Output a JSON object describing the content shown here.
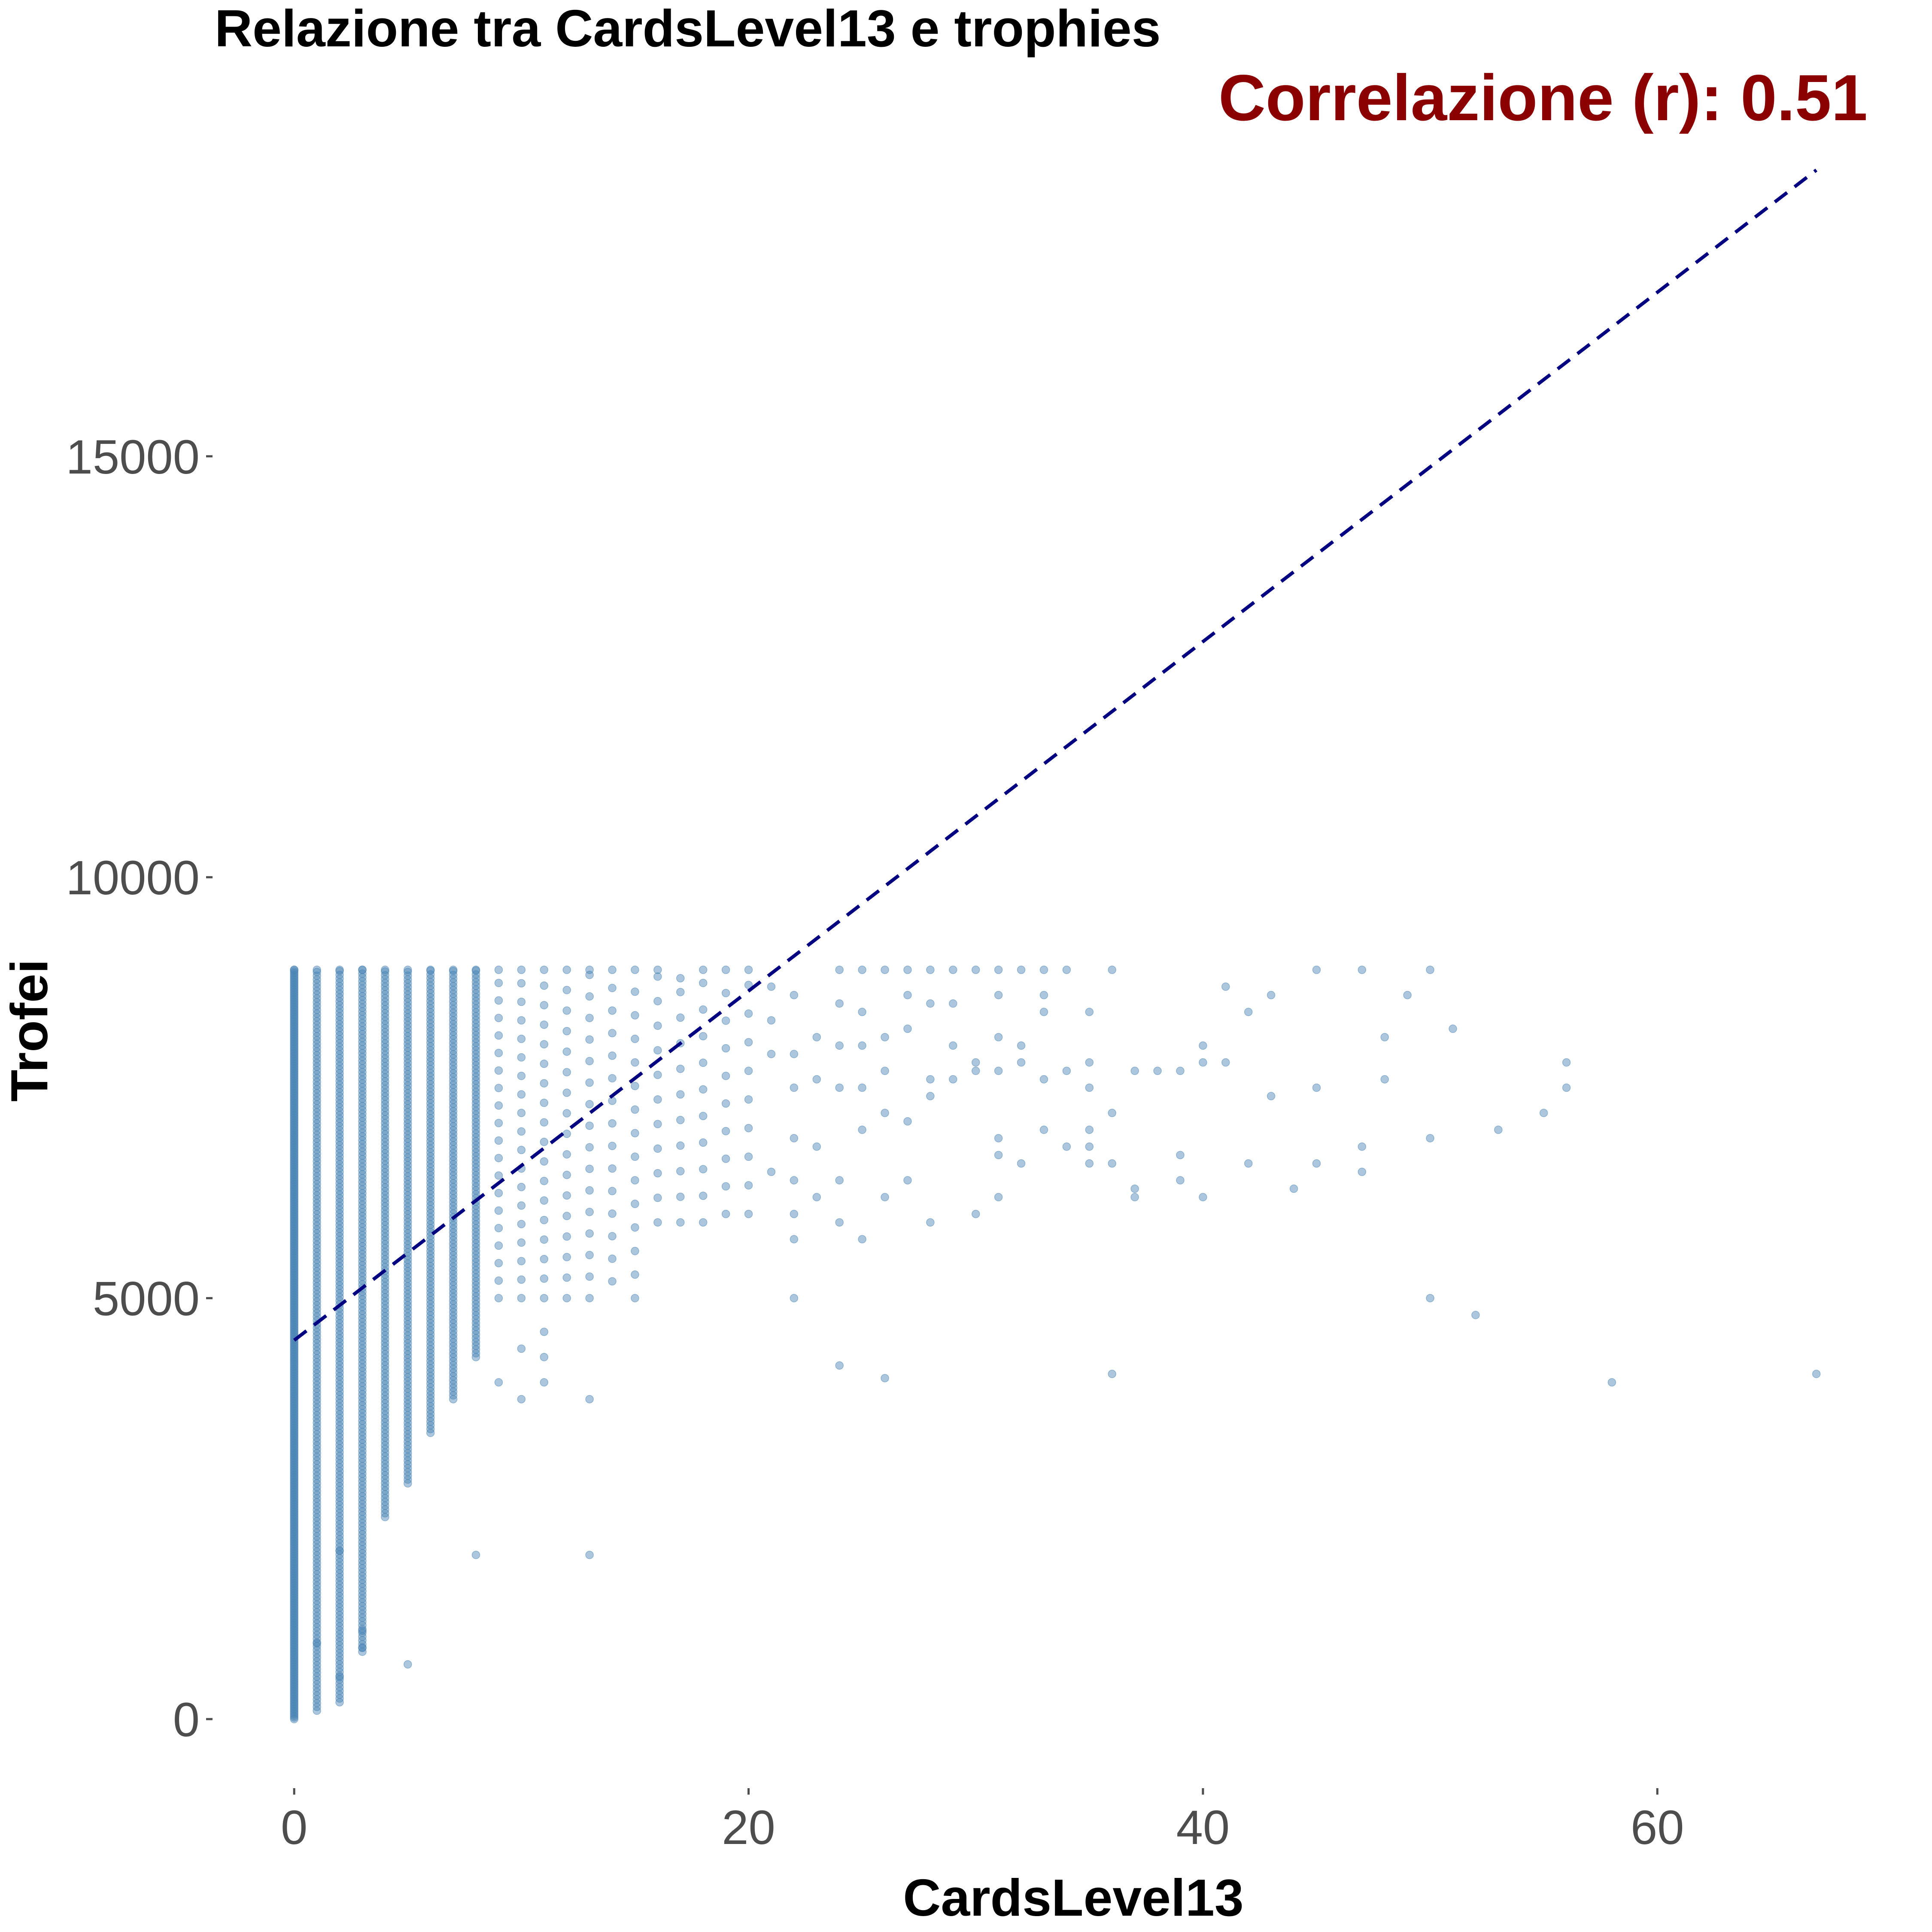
{
  "chart_data": {
    "type": "scatter",
    "title": "Relazione tra CardsLevel13 e trophies",
    "xlabel": "CardsLevel13",
    "ylabel": "Trofei",
    "annotation": "Correlazione (r): 0.51",
    "xlim": [
      -3.5,
      70.2
    ],
    "ylim": [
      -1050,
      19400
    ],
    "x_ticks": [
      0,
      20,
      40,
      60
    ],
    "y_ticks": [
      0,
      5000,
      10000,
      15000
    ],
    "x_tick_labels": [
      "0",
      "20",
      "40",
      "60"
    ],
    "y_tick_labels": [
      "0",
      "5000",
      "10000",
      "15000"
    ],
    "grid": false,
    "legend": "none",
    "colors": {
      "points": "#4682b4",
      "trend": "#000080",
      "annotation": "#8b0000"
    },
    "trend_line": {
      "x": [
        0,
        67
      ],
      "y": [
        4500,
        18400
      ],
      "style": "dashed"
    },
    "column_ranges": [
      [
        0,
        0,
        8900
      ],
      [
        1,
        100,
        8900
      ],
      [
        2,
        200,
        8900
      ],
      [
        3,
        800,
        8900
      ],
      [
        4,
        2400,
        8900
      ],
      [
        5,
        2800,
        8900
      ],
      [
        6,
        3400,
        8900
      ],
      [
        7,
        3800,
        8900
      ],
      [
        8,
        4300,
        8900
      ],
      [
        9,
        5000,
        8900
      ],
      [
        10,
        5000,
        8900
      ],
      [
        11,
        5000,
        8900
      ],
      [
        12,
        5000,
        8900
      ],
      [
        13,
        5000,
        8900
      ],
      [
        14,
        5200,
        8900
      ],
      [
        15,
        5000,
        8900
      ],
      [
        16,
        5900,
        8900
      ],
      [
        17,
        5900,
        8800
      ],
      [
        18,
        5900,
        8900
      ],
      [
        19,
        6000,
        8900
      ],
      [
        20,
        6000,
        8900
      ]
    ],
    "points": [
      [
        2,
        2000
      ],
      [
        8,
        1950
      ],
      [
        13,
        1950
      ],
      [
        3,
        1050
      ],
      [
        3,
        850
      ],
      [
        2,
        500
      ],
      [
        5,
        650
      ],
      [
        1,
        900
      ],
      [
        9,
        4000
      ],
      [
        10,
        3800
      ],
      [
        11,
        4000
      ],
      [
        11,
        4300
      ],
      [
        10,
        4400
      ],
      [
        11,
        4600
      ],
      [
        13,
        3800
      ],
      [
        21,
        8700
      ],
      [
        21,
        8300
      ],
      [
        21,
        7900
      ],
      [
        21,
        6500
      ],
      [
        22,
        8600
      ],
      [
        22,
        7900
      ],
      [
        22,
        7500
      ],
      [
        22,
        6900
      ],
      [
        22,
        6400
      ],
      [
        22,
        6000
      ],
      [
        22,
        5700
      ],
      [
        22,
        5000
      ],
      [
        23,
        8100
      ],
      [
        23,
        7600
      ],
      [
        23,
        6800
      ],
      [
        23,
        6200
      ],
      [
        24,
        8900
      ],
      [
        24,
        8500
      ],
      [
        24,
        8000
      ],
      [
        24,
        7500
      ],
      [
        24,
        6400
      ],
      [
        24,
        5900
      ],
      [
        24,
        4200
      ],
      [
        25,
        8900
      ],
      [
        25,
        8400
      ],
      [
        25,
        8000
      ],
      [
        25,
        7500
      ],
      [
        25,
        7000
      ],
      [
        25,
        5700
      ],
      [
        26,
        8900
      ],
      [
        26,
        8100
      ],
      [
        26,
        7700
      ],
      [
        26,
        7200
      ],
      [
        26,
        6200
      ],
      [
        26,
        4050
      ],
      [
        27,
        8900
      ],
      [
        27,
        8600
      ],
      [
        27,
        8200
      ],
      [
        27,
        7100
      ],
      [
        27,
        6400
      ],
      [
        28,
        8900
      ],
      [
        28,
        8500
      ],
      [
        28,
        7600
      ],
      [
        28,
        7400
      ],
      [
        28,
        5900
      ],
      [
        29,
        8900
      ],
      [
        29,
        8500
      ],
      [
        29,
        8000
      ],
      [
        29,
        7600
      ],
      [
        30,
        8900
      ],
      [
        30,
        7800
      ],
      [
        30,
        7700
      ],
      [
        30,
        6000
      ],
      [
        31,
        8900
      ],
      [
        31,
        8600
      ],
      [
        31,
        8100
      ],
      [
        31,
        7700
      ],
      [
        31,
        6900
      ],
      [
        31,
        6700
      ],
      [
        31,
        6200
      ],
      [
        32,
        8900
      ],
      [
        32,
        8000
      ],
      [
        32,
        7800
      ],
      [
        32,
        6600
      ],
      [
        33,
        8900
      ],
      [
        33,
        8600
      ],
      [
        33,
        8400
      ],
      [
        33,
        7600
      ],
      [
        33,
        7000
      ],
      [
        34,
        8900
      ],
      [
        34,
        7700
      ],
      [
        34,
        6800
      ],
      [
        35,
        8400
      ],
      [
        35,
        7800
      ],
      [
        35,
        7500
      ],
      [
        35,
        7000
      ],
      [
        35,
        6800
      ],
      [
        35,
        6600
      ],
      [
        36,
        8900
      ],
      [
        36,
        7200
      ],
      [
        36,
        6600
      ],
      [
        36,
        4100
      ],
      [
        37,
        7700
      ],
      [
        37,
        6300
      ],
      [
        37,
        6200
      ],
      [
        38,
        7700
      ],
      [
        39,
        7700
      ],
      [
        39,
        6700
      ],
      [
        39,
        6400
      ],
      [
        40,
        8000
      ],
      [
        40,
        7800
      ],
      [
        40,
        6200
      ],
      [
        41,
        7800
      ],
      [
        41,
        8700
      ],
      [
        42,
        8400
      ],
      [
        42,
        6600
      ],
      [
        43,
        8600
      ],
      [
        43,
        7400
      ],
      [
        44,
        6300
      ],
      [
        45,
        8900
      ],
      [
        45,
        7500
      ],
      [
        45,
        6600
      ],
      [
        47,
        8900
      ],
      [
        47,
        6800
      ],
      [
        47,
        6500
      ],
      [
        48,
        8100
      ],
      [
        48,
        7600
      ],
      [
        49,
        8600
      ],
      [
        50,
        8900
      ],
      [
        50,
        6900
      ],
      [
        50,
        5000
      ],
      [
        51,
        8200
      ],
      [
        52,
        4800
      ],
      [
        53,
        7000
      ],
      [
        55,
        7200
      ],
      [
        56,
        7800
      ],
      [
        56,
        7500
      ],
      [
        58,
        4000
      ],
      [
        67,
        4100
      ]
    ]
  }
}
